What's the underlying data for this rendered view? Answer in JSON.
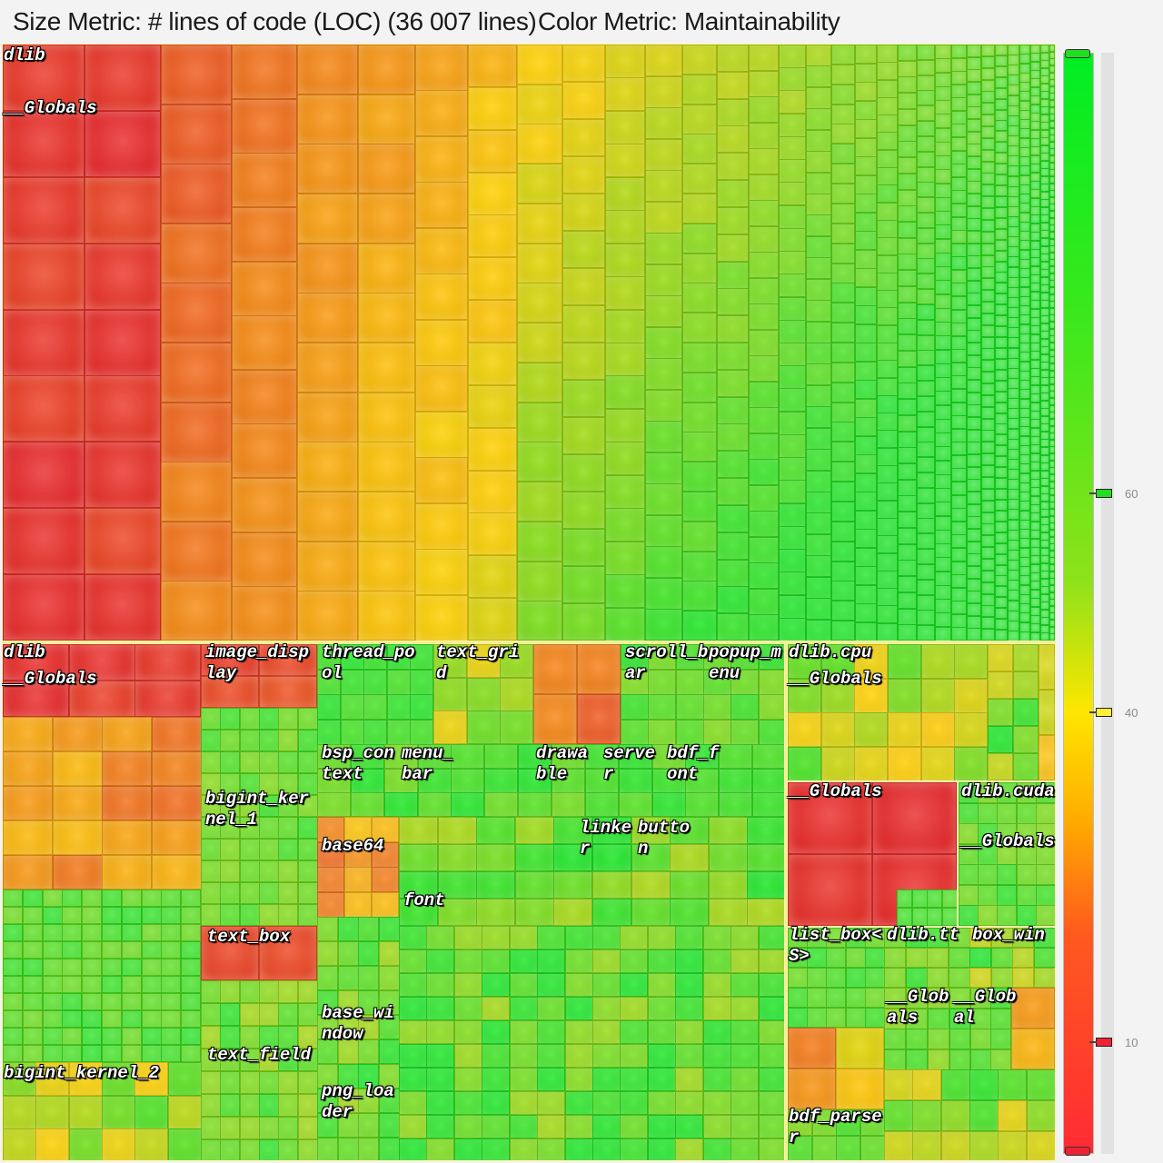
{
  "header": {
    "size_metric": "Size Metric: # lines of code (LOC) (36 007 lines)",
    "color_metric": "Color Metric: Maintainability"
  },
  "labels": {
    "top_dlib": "dlib",
    "top_globals": "__Globals",
    "bl_dlib": "dlib",
    "bl_globals": "__Globals",
    "image_display": "image_display",
    "thread_pool": "thread_pool",
    "text_grid": "text_grid",
    "scroll_bar": "scroll_bar",
    "popup_menu": "popup_menu",
    "dlib_cpu": "dlib.cpu",
    "cpu_globals": "__Globals",
    "bsp_context": "bsp_context",
    "menu_bar": "menu_bar",
    "drawable": "drawable",
    "server": "server",
    "bdf_font": "bdf_font",
    "bigint_kernel_1": "bigint_kernel_1",
    "globals_big_red": "__Globals",
    "dlib_cuda": "dlib.cuda",
    "cuda_globals": "__Globals",
    "base64": "base64",
    "linker": "linker",
    "button": "button",
    "font": "font",
    "text_box": "text_box",
    "list_box": "list_box<S>",
    "dlib_tt": "dlib.tt",
    "box_win": "box_win",
    "base_window": "base_window",
    "tt_globals": "__Globals",
    "box_globals": "__Global",
    "text_field": "text_field",
    "bigint_kernel_2": "bigint_kernel_2",
    "png_loader": "png_loader",
    "bdf_parser": "bdf_parser"
  },
  "legend": {
    "ticks": [
      "60",
      "40",
      "10"
    ],
    "marker_colors": [
      "#22dd22",
      "#ffee33",
      "#ee2233"
    ],
    "handle_top_color": "#22dd22",
    "handle_bottom_color": "#ee2233",
    "gradient_colors": [
      "#00ee22",
      "#8ee21a",
      "#ffe600",
      "#ffaa00",
      "#ff2b34"
    ]
  },
  "colors": {
    "maintainability_low": "#e8232f",
    "maintainability_mid": "#ffd000",
    "maintainability_high": "#18e622"
  }
}
